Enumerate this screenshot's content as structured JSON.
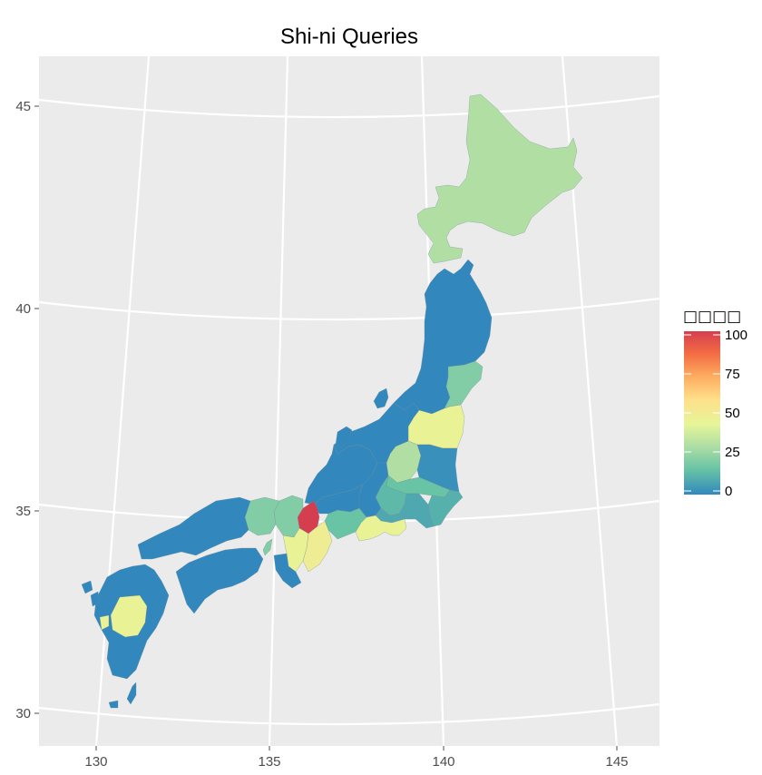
{
  "chart_data": {
    "type": "map",
    "title": "Shi-ni Queries",
    "xlabel": "",
    "ylabel": "lat",
    "x_ticks": [
      130,
      135,
      140,
      145
    ],
    "y_ticks": [
      30,
      35,
      40,
      45
    ],
    "legend": {
      "title": "□□□□",
      "ticks": [
        100,
        75,
        50,
        25,
        0
      ],
      "range": [
        0,
        100
      ],
      "position": "right",
      "palette": [
        "#3288bd",
        "#66c2a5",
        "#abdda4",
        "#e6f598",
        "#fee08b",
        "#fdae61",
        "#f46d43",
        "#d53e4f"
      ]
    },
    "regions": [
      {
        "name": "Hokkaido",
        "value": 30
      },
      {
        "name": "Tohoku",
        "value": 0
      },
      {
        "name": "Miyagi",
        "value": 20
      },
      {
        "name": "Fukushima",
        "value": 45
      },
      {
        "name": "Tochigi",
        "value": 30
      },
      {
        "name": "Ibaraki",
        "value": 2
      },
      {
        "name": "Gunma",
        "value": 12
      },
      {
        "name": "Saitama",
        "value": 15
      },
      {
        "name": "Chiba",
        "value": 10
      },
      {
        "name": "Niigata",
        "value": 0
      },
      {
        "name": "Hokuriku",
        "value": 0
      },
      {
        "name": "Nagano",
        "value": 0
      },
      {
        "name": "Yamanashi",
        "value": 8
      },
      {
        "name": "Shizuoka",
        "value": 45
      },
      {
        "name": "Aichi",
        "value": 15
      },
      {
        "name": "Gifu",
        "value": 0
      },
      {
        "name": "Shiga",
        "value": 100
      },
      {
        "name": "Kyoto",
        "value": 20
      },
      {
        "name": "Hyogo",
        "value": 20
      },
      {
        "name": "Nara",
        "value": 45
      },
      {
        "name": "Mie",
        "value": 48
      },
      {
        "name": "Wakayama",
        "value": 0
      },
      {
        "name": "Chugoku",
        "value": 0
      },
      {
        "name": "Shikoku",
        "value": 0
      },
      {
        "name": "Kyushu",
        "value": 0
      },
      {
        "name": "Kumamoto",
        "value": 45
      },
      {
        "name": "Koshikijima",
        "value": 45
      }
    ]
  }
}
